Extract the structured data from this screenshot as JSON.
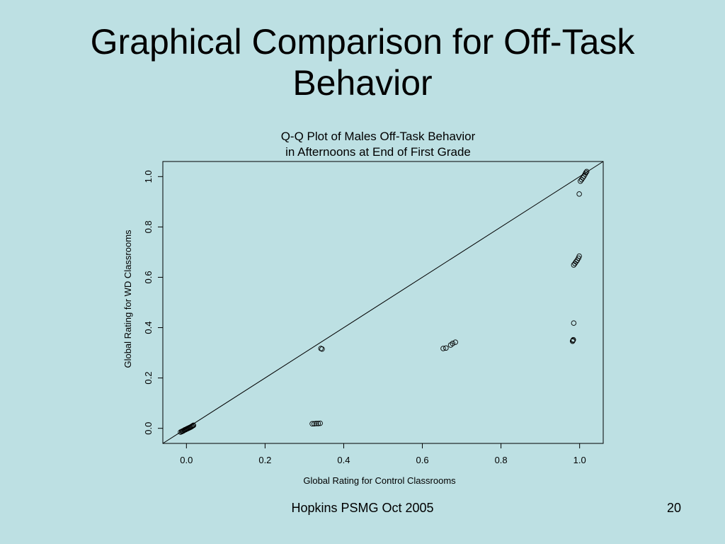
{
  "slide": {
    "title": "Graphical Comparison for Off-Task Behavior",
    "footer": "Hopkins PSMG Oct 2005",
    "page_number": "20"
  },
  "chart_data": {
    "type": "scatter",
    "title_lines": [
      "Q-Q Plot of Males Off-Task Behavior",
      "in Afternoons at End of First Grade"
    ],
    "xlabel": "Global Rating for Control Classrooms",
    "ylabel": "Global Rating for WD Classrooms",
    "xlim": [
      -0.06,
      1.06
    ],
    "ylim": [
      -0.06,
      1.06
    ],
    "xticks": [
      0.0,
      0.2,
      0.4,
      0.6,
      0.8,
      1.0
    ],
    "yticks": [
      0.0,
      0.2,
      0.4,
      0.6,
      0.8,
      1.0
    ],
    "xtick_labels": [
      "0.0",
      "0.2",
      "0.4",
      "0.6",
      "0.8",
      "1.0"
    ],
    "ytick_labels": [
      "0.0",
      "0.2",
      "0.4",
      "0.6",
      "0.8",
      "1.0"
    ],
    "reference_line": "y = x",
    "marker": "open-circle",
    "points": [
      {
        "x": -0.015,
        "y": -0.015
      },
      {
        "x": -0.012,
        "y": -0.013
      },
      {
        "x": -0.01,
        "y": -0.011
      },
      {
        "x": -0.008,
        "y": -0.01
      },
      {
        "x": -0.006,
        "y": -0.008
      },
      {
        "x": -0.004,
        "y": -0.006
      },
      {
        "x": -0.002,
        "y": -0.005
      },
      {
        "x": 0.0,
        "y": -0.003
      },
      {
        "x": 0.002,
        "y": -0.002
      },
      {
        "x": 0.004,
        "y": 0.0
      },
      {
        "x": 0.006,
        "y": 0.001
      },
      {
        "x": 0.008,
        "y": 0.003
      },
      {
        "x": 0.01,
        "y": 0.004
      },
      {
        "x": 0.012,
        "y": 0.006
      },
      {
        "x": 0.014,
        "y": 0.008
      },
      {
        "x": 0.016,
        "y": 0.01
      },
      {
        "x": 0.018,
        "y": 0.012
      },
      {
        "x": 0.32,
        "y": 0.018
      },
      {
        "x": 0.325,
        "y": 0.018
      },
      {
        "x": 0.33,
        "y": 0.019
      },
      {
        "x": 0.335,
        "y": 0.019
      },
      {
        "x": 0.34,
        "y": 0.02
      },
      {
        "x": 0.345,
        "y": 0.315
      },
      {
        "x": 0.342,
        "y": 0.317
      },
      {
        "x": 0.653,
        "y": 0.317
      },
      {
        "x": 0.66,
        "y": 0.319
      },
      {
        "x": 0.672,
        "y": 0.331
      },
      {
        "x": 0.677,
        "y": 0.337
      },
      {
        "x": 0.684,
        "y": 0.342
      },
      {
        "x": 0.982,
        "y": 0.346
      },
      {
        "x": 0.983,
        "y": 0.349
      },
      {
        "x": 0.984,
        "y": 0.352
      },
      {
        "x": 0.985,
        "y": 0.418
      },
      {
        "x": 0.985,
        "y": 0.649
      },
      {
        "x": 0.988,
        "y": 0.655
      },
      {
        "x": 0.991,
        "y": 0.662
      },
      {
        "x": 0.994,
        "y": 0.668
      },
      {
        "x": 0.997,
        "y": 0.676
      },
      {
        "x": 0.999,
        "y": 0.684
      },
      {
        "x": 0.999,
        "y": 0.931
      },
      {
        "x": 1.002,
        "y": 0.982
      },
      {
        "x": 1.005,
        "y": 0.988
      },
      {
        "x": 1.008,
        "y": 0.995
      },
      {
        "x": 1.011,
        "y": 1.002
      },
      {
        "x": 1.014,
        "y": 1.01
      },
      {
        "x": 1.016,
        "y": 1.016
      },
      {
        "x": 1.018,
        "y": 1.02
      }
    ]
  }
}
